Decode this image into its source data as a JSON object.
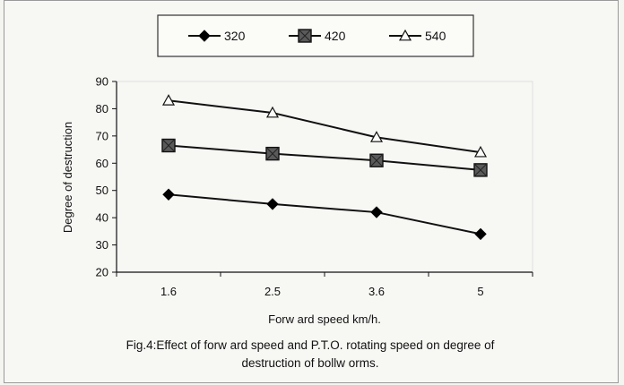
{
  "chart_data": {
    "type": "line",
    "categories": [
      "1.6",
      "2.5",
      "3.6",
      "5"
    ],
    "series": [
      {
        "name": "320",
        "values": [
          48.5,
          45,
          42,
          34
        ],
        "marker": "diamond",
        "color": "#000000"
      },
      {
        "name": "420",
        "values": [
          66.5,
          63.5,
          61,
          57.5
        ],
        "marker": "square",
        "color": "#3a3a3a"
      },
      {
        "name": "540",
        "values": [
          83,
          78.5,
          69.5,
          64
        ],
        "marker": "triangle",
        "color": "#111111"
      }
    ],
    "yticks": [
      "20",
      "30",
      "40",
      "50",
      "60",
      "70",
      "80",
      "90"
    ],
    "ylim": [
      20,
      90
    ],
    "xlabel": "Forw ard speed km/h.",
    "ylabel": "Degree of destruction",
    "legend_position": "top",
    "grid": false
  },
  "caption": {
    "line1": "Fig.4:Effect of forw ard speed and P.T.O. rotating speed on degree of",
    "line2": "destruction of bollw orms."
  }
}
